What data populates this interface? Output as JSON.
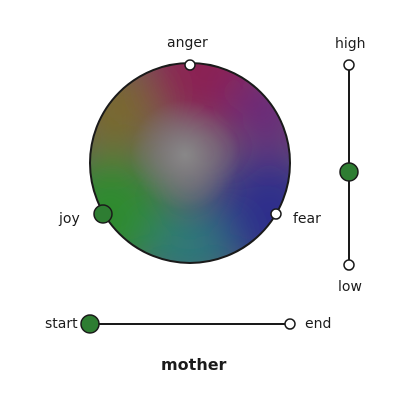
{
  "emotion_wheel": {
    "labels": {
      "anger": "anger",
      "joy": "joy",
      "fear": "fear"
    },
    "colors": {
      "anger": "#8b2252",
      "joy": "#2e8b2e",
      "fear": "#2e2e8b",
      "neutral": "#8a8a8a",
      "stroke": "#1a1a1a",
      "knob_active": "#2e7d32"
    }
  },
  "intensity_slider": {
    "high_label": "high",
    "low_label": "low",
    "value_fraction": 0.5
  },
  "timeline_slider": {
    "start_label": "start",
    "end_label": "end",
    "value_fraction": 0.0
  },
  "stimulus_word": "mother"
}
